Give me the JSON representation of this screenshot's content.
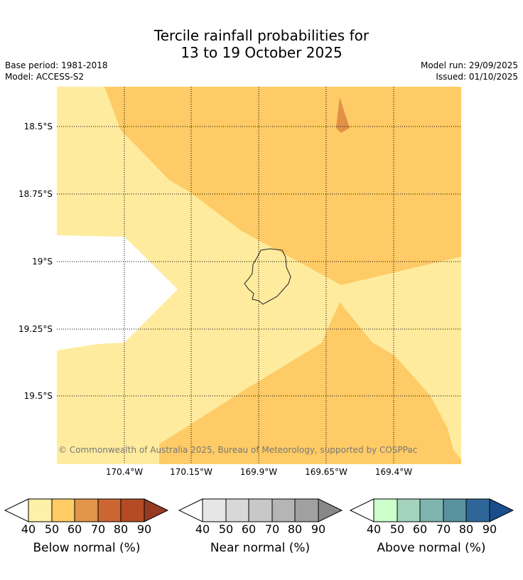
{
  "title_line1": "Tercile rainfall probabilities for",
  "title_line2": "13 to 19 October 2025",
  "base_period": "Base period: 1981-2018",
  "model": "Model: ACCESS-S2",
  "model_run": "Model run: 29/09/2025",
  "issued": "Issued: 01/10/2025",
  "copyright": "© Commonwealth of Australia 2025, Bureau of Meteorology, supported by COSPPac",
  "lat_labels": [
    "18.5°S",
    "18.75°S",
    "19°S",
    "19.25°S",
    "19.5°S"
  ],
  "lon_labels": [
    "170.4°W",
    "170.15°W",
    "169.9°W",
    "169.65°W",
    "169.4°W"
  ],
  "legends": [
    {
      "title": "Below normal (%)",
      "ticks": [
        "40",
        "50",
        "60",
        "70",
        "80",
        "90"
      ],
      "colors": [
        "#fff0a8",
        "#ffcc66",
        "#e0954a",
        "#cc6633",
        "#b34c26",
        "#963a22"
      ]
    },
    {
      "title": "Near normal (%)",
      "ticks": [
        "40",
        "50",
        "60",
        "70",
        "80",
        "90"
      ],
      "colors": [
        "#e6e6e6",
        "#d8d8d8",
        "#c8c8c8",
        "#b5b5b5",
        "#a0a0a0",
        "#888888"
      ]
    },
    {
      "title": "Above normal (%)",
      "ticks": [
        "40",
        "50",
        "60",
        "70",
        "80",
        "90"
      ],
      "colors": [
        "#ccffcc",
        "#a3d4bb",
        "#7fb3ae",
        "#5a929f",
        "#2e6699",
        "#1a4d8c"
      ]
    }
  ],
  "colors": {
    "below_40_50": "#feeb9e",
    "below_50_60": "#fecb66",
    "below_60_70": "#e19145"
  }
}
